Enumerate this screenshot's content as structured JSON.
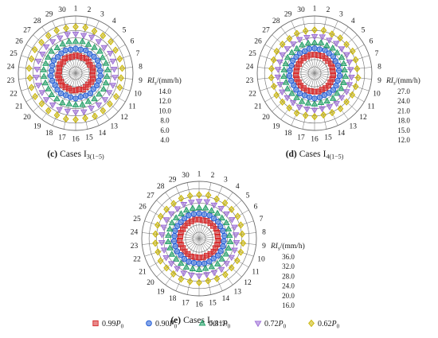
{
  "colors": {
    "0.99P0": "#d62728",
    "0.90P0": "#1f5bd6",
    "0.81P0": "#1a9e62",
    "0.72P0": "#9b6bd6",
    "0.62P0": "#c9b400"
  },
  "legend": [
    {
      "coef": "0.99",
      "sym": "P",
      "sub": "0",
      "marker": "square",
      "color_key": "0.99P0"
    },
    {
      "coef": "0.90",
      "sym": "P",
      "sub": "0",
      "marker": "circle",
      "color_key": "0.90P0"
    },
    {
      "coef": "0.81",
      "sym": "P",
      "sub": "0",
      "marker": "triangle-up",
      "color_key": "0.81P0"
    },
    {
      "coef": "0.72",
      "sym": "P",
      "sub": "0",
      "marker": "triangle-down",
      "color_key": "0.72P0"
    },
    {
      "coef": "0.62",
      "sym": "P",
      "sub": "0",
      "marker": "diamond",
      "color_key": "0.62P0"
    }
  ],
  "chart_data": [
    {
      "type": "polar-scatter",
      "caption": {
        "label": "(c)",
        "word": "Cases",
        "case_letter": "I",
        "case_sub": "3(1−5)"
      },
      "angular_labels": [
        "1",
        "2",
        "3",
        "4",
        "5",
        "6",
        "7",
        "8",
        "9",
        "10",
        "11",
        "12",
        "13",
        "14",
        "15",
        "16",
        "17",
        "18",
        "19",
        "20",
        "21",
        "22",
        "23",
        "24",
        "25",
        "26",
        "27",
        "28",
        "29",
        "30"
      ],
      "radial_axis": {
        "label_main": "RI",
        "label_sub": "s",
        "label_unit": "/(mm/h)",
        "ticks": [
          4.0,
          6.0,
          8.0,
          10.0,
          12.0,
          14.0
        ],
        "tick_labels": [
          "14.0",
          "12.0",
          "10.0",
          "8.0",
          "6.0",
          "4.0"
        ]
      },
      "series": [
        {
          "name": "0.99P0",
          "values": [
            5.1,
            5.0,
            4.9,
            5.2,
            5.0,
            4.8,
            5.1,
            5.0,
            4.9,
            5.2,
            5.1,
            4.9,
            5.0,
            5.2,
            4.8,
            5.0,
            5.1,
            4.9,
            5.0,
            5.2,
            4.9,
            5.0,
            5.1,
            4.8,
            5.0,
            5.1,
            4.9,
            5.2,
            5.0,
            4.9
          ]
        },
        {
          "name": "0.90P0",
          "values": [
            7.0,
            6.9,
            7.1,
            6.8,
            7.0,
            7.2,
            6.9,
            7.0,
            7.1,
            6.9,
            7.0,
            6.8,
            7.1,
            7.0,
            6.9,
            7.2,
            7.0,
            6.9,
            7.1,
            7.0,
            6.8,
            7.0,
            7.1,
            6.9,
            7.0,
            7.2,
            6.9,
            7.0,
            7.1,
            6.9
          ]
        },
        {
          "name": "0.81P0",
          "values": [
            9.0,
            9.1,
            8.9,
            9.0,
            9.2,
            8.8,
            9.0,
            9.1,
            8.9,
            9.0,
            9.1,
            8.9,
            9.0,
            8.8,
            9.1,
            9.0,
            8.9,
            9.2,
            9.0,
            9.1,
            8.9,
            9.0,
            9.0,
            9.1,
            8.9,
            9.0,
            9.2,
            8.9,
            9.0,
            9.1
          ]
        },
        {
          "name": "0.72P0",
          "values": [
            11.0,
            10.9,
            11.1,
            11.0,
            10.8,
            11.2,
            11.0,
            10.9,
            11.1,
            11.0,
            10.9,
            11.1,
            11.0,
            10.8,
            11.1,
            11.0,
            10.9,
            11.2,
            11.0,
            11.1,
            10.9,
            11.0,
            11.1,
            10.9,
            11.0,
            10.8,
            11.1,
            11.0,
            10.9,
            11.1
          ]
        },
        {
          "name": "0.62P0",
          "values": [
            13.0,
            13.1,
            12.9,
            13.0,
            13.2,
            12.9,
            13.0,
            13.1,
            12.8,
            13.0,
            13.1,
            12.9,
            13.0,
            13.2,
            12.9,
            13.0,
            13.1,
            12.9,
            13.0,
            12.8,
            13.1,
            13.0,
            12.9,
            13.1,
            13.0,
            13.2,
            12.9,
            13.0,
            13.1,
            12.9
          ]
        }
      ]
    },
    {
      "type": "polar-scatter",
      "caption": {
        "label": "(d)",
        "word": "Cases",
        "case_letter": "I",
        "case_sub": "4(1−5)"
      },
      "angular_labels": [
        "1",
        "2",
        "3",
        "4",
        "5",
        "6",
        "7",
        "8",
        "9",
        "10",
        "11",
        "12",
        "13",
        "14",
        "15",
        "16",
        "17",
        "18",
        "19",
        "20",
        "21",
        "22",
        "23",
        "24",
        "25",
        "26",
        "27",
        "28",
        "29",
        "30"
      ],
      "radial_axis": {
        "label_main": "RI",
        "label_sub": "s",
        "label_unit": "/(mm/h)",
        "ticks": [
          12.0,
          15.0,
          18.0,
          21.0,
          24.0,
          27.0
        ],
        "tick_labels": [
          "27.0",
          "24.0",
          "21.0",
          "18.0",
          "15.0",
          "12.0"
        ]
      },
      "series": [
        {
          "name": "0.99P0",
          "values": [
            14.0,
            13.9,
            14.1,
            14.0,
            13.8,
            14.2,
            14.0,
            13.9,
            14.1,
            14.0,
            13.9,
            14.1,
            14.0,
            13.8,
            14.1,
            14.0,
            13.9,
            14.2,
            14.0,
            14.1,
            13.9,
            14.0,
            14.1,
            13.9,
            14.0,
            13.8,
            14.1,
            14.0,
            13.9,
            14.1
          ]
        },
        {
          "name": "0.90P0",
          "values": [
            16.6,
            16.4,
            16.8,
            16.5,
            16.7,
            16.3,
            16.6,
            16.5,
            16.8,
            16.4,
            16.6,
            16.7,
            16.5,
            16.3,
            16.6,
            16.8,
            16.5,
            16.4,
            16.7,
            16.6,
            16.3,
            16.5,
            16.8,
            16.6,
            16.4,
            16.7,
            16.5,
            16.6,
            16.3,
            16.7
          ]
        },
        {
          "name": "0.81P0",
          "values": [
            19.0,
            19.2,
            18.8,
            19.1,
            18.9,
            19.3,
            19.0,
            18.8,
            19.2,
            19.0,
            19.1,
            18.9,
            19.3,
            19.0,
            18.8,
            19.1,
            19.0,
            19.2,
            18.9,
            19.0,
            19.3,
            18.8,
            19.1,
            19.0,
            18.9,
            19.2,
            19.0,
            18.8,
            19.1,
            19.0
          ]
        },
        {
          "name": "0.72P0",
          "values": [
            21.5,
            21.7,
            21.3,
            21.6,
            21.4,
            21.8,
            21.5,
            21.3,
            21.7,
            21.5,
            21.6,
            21.4,
            21.8,
            21.5,
            21.3,
            21.6,
            21.5,
            21.7,
            21.4,
            21.5,
            21.8,
            21.3,
            21.6,
            21.5,
            21.4,
            21.7,
            21.5,
            21.3,
            21.6,
            21.5
          ]
        },
        {
          "name": "0.62P0",
          "values": [
            24.2,
            24.4,
            24.0,
            24.3,
            24.1,
            24.5,
            24.2,
            24.0,
            24.4,
            24.2,
            24.3,
            24.1,
            24.5,
            24.2,
            24.0,
            24.3,
            24.2,
            24.4,
            24.1,
            24.2,
            24.5,
            24.0,
            24.3,
            24.2,
            24.1,
            24.4,
            24.2,
            24.0,
            24.3,
            24.2
          ]
        }
      ]
    },
    {
      "type": "polar-scatter",
      "caption": {
        "label": "(e)",
        "word": "Cases",
        "case_letter": "I",
        "case_sub": "5(1−5)"
      },
      "angular_labels": [
        "1",
        "2",
        "3",
        "4",
        "5",
        "6",
        "7",
        "8",
        "9",
        "10",
        "11",
        "12",
        "13",
        "14",
        "15",
        "16",
        "17",
        "18",
        "19",
        "20",
        "21",
        "22",
        "23",
        "24",
        "25",
        "26",
        "27",
        "28",
        "29",
        "30"
      ],
      "radial_axis": {
        "label_main": "RI",
        "label_sub": "s",
        "label_unit": "/(mm/h)",
        "ticks": [
          16.0,
          20.0,
          24.0,
          28.0,
          32.0,
          36.0
        ],
        "tick_labels": [
          "36.0",
          "32.0",
          "28.0",
          "24.0",
          "20.0",
          "16.0"
        ]
      },
      "series": [
        {
          "name": "0.99P0",
          "values": [
            19.0,
            18.8,
            19.2,
            19.0,
            18.9,
            19.3,
            19.0,
            18.8,
            19.1,
            19.0,
            18.9,
            19.2,
            19.0,
            18.8,
            19.1,
            19.0,
            18.9,
            19.3,
            19.0,
            19.1,
            18.8,
            19.0,
            19.2,
            18.9,
            19.0,
            18.8,
            19.1,
            19.0,
            18.9,
            19.2
          ]
        },
        {
          "name": "0.90P0",
          "values": [
            22.3,
            22.1,
            22.5,
            22.2,
            22.4,
            22.0,
            22.3,
            22.5,
            22.1,
            22.3,
            22.2,
            22.4,
            22.0,
            22.3,
            22.5,
            22.2,
            22.1,
            22.4,
            22.3,
            22.0,
            22.5,
            22.2,
            22.3,
            22.1,
            22.4,
            22.3,
            22.0,
            22.2,
            22.5,
            22.3
          ]
        },
        {
          "name": "0.81P0",
          "values": [
            25.5,
            25.7,
            25.3,
            25.6,
            25.4,
            25.8,
            25.5,
            25.3,
            25.7,
            25.5,
            25.6,
            25.4,
            25.8,
            25.5,
            25.3,
            25.6,
            25.5,
            25.7,
            25.4,
            25.5,
            25.8,
            25.3,
            25.6,
            25.5,
            25.4,
            25.7,
            25.5,
            25.3,
            25.6,
            25.5
          ]
        },
        {
          "name": "0.72P0",
          "values": [
            29.0,
            29.3,
            28.7,
            29.1,
            28.9,
            29.4,
            29.0,
            28.8,
            29.2,
            29.0,
            29.1,
            28.9,
            29.4,
            29.0,
            28.7,
            29.1,
            29.0,
            29.3,
            28.9,
            29.0,
            29.4,
            28.7,
            29.1,
            29.0,
            28.9,
            29.3,
            29.0,
            28.8,
            29.1,
            29.0
          ]
        },
        {
          "name": "0.62P0",
          "values": [
            32.6,
            32.9,
            32.3,
            32.7,
            32.5,
            33.0,
            32.6,
            32.3,
            32.8,
            32.6,
            32.7,
            32.5,
            33.0,
            32.6,
            32.3,
            32.7,
            32.6,
            32.9,
            32.5,
            32.6,
            33.0,
            32.3,
            32.7,
            32.6,
            32.5,
            32.9,
            32.6,
            32.3,
            32.7,
            32.6
          ]
        }
      ]
    }
  ]
}
